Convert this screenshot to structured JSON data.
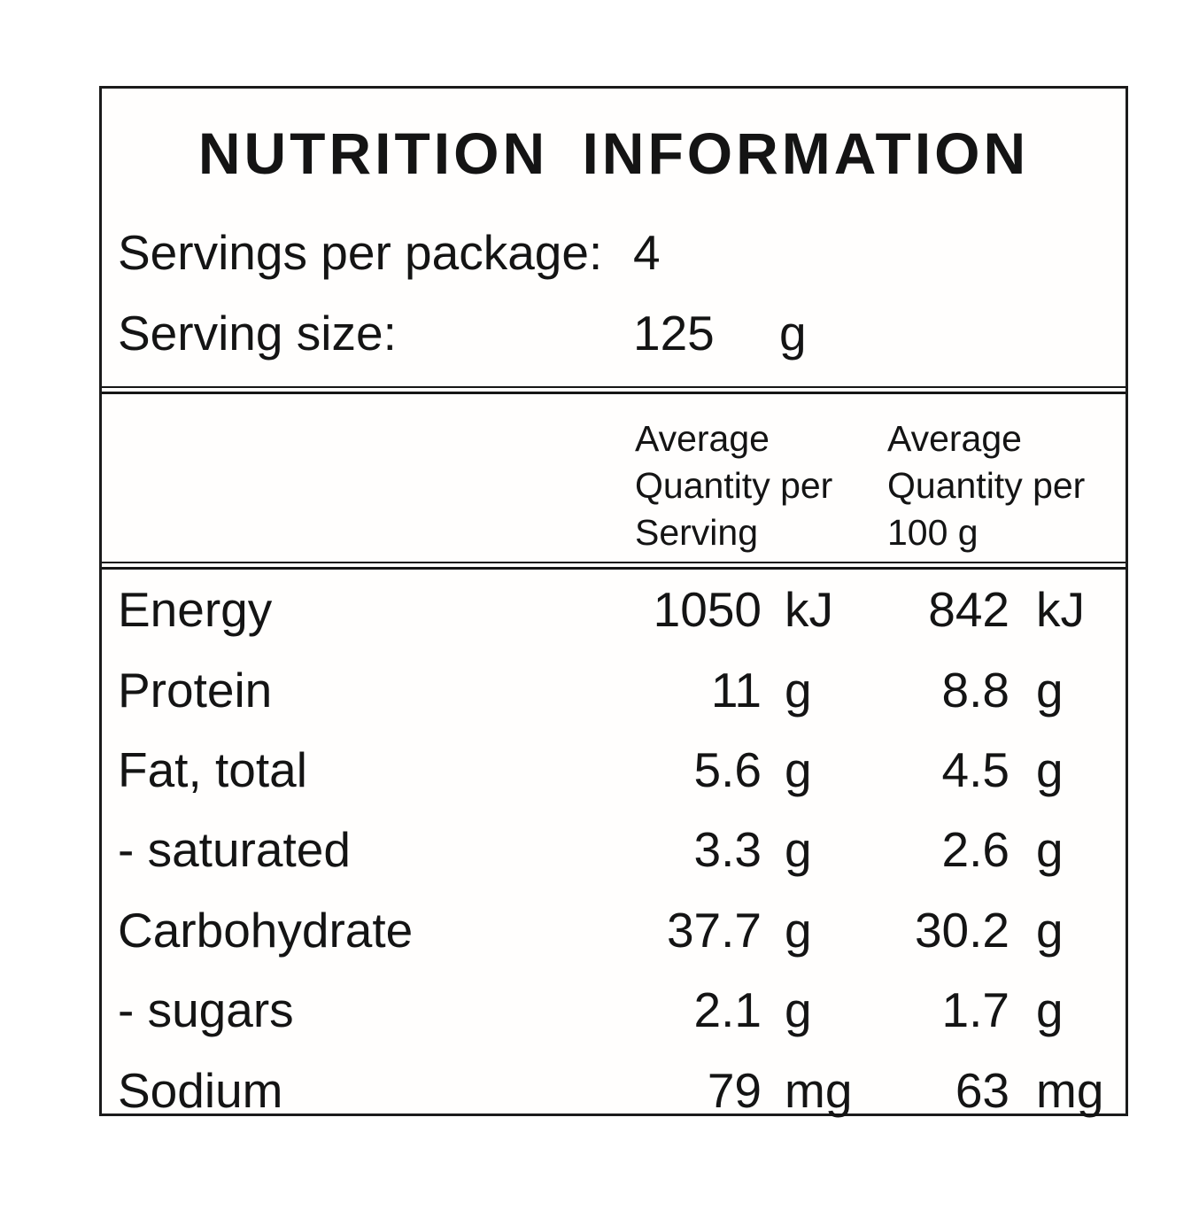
{
  "colors": {
    "text": "#141414",
    "border": "#1b1b1b",
    "background": "#ffffff"
  },
  "panel": {
    "title": "NUTRITION INFORMATION",
    "servings_per_package_label": "Servings per package:",
    "servings_per_package_value": "4",
    "serving_size_label": "Serving size:",
    "serving_size_value": "125",
    "serving_size_unit": "g",
    "column_headers": {
      "per_serving": {
        "line1": "Average",
        "line2": "Quantity per",
        "line3": "Serving"
      },
      "per_100g": {
        "line1": "Average",
        "line2": "Quantity per",
        "line3": "100 g"
      }
    },
    "rows": [
      {
        "name": "Energy",
        "qty_serving": "1050",
        "unit_serving": "kJ",
        "qty_100g": "842",
        "unit_100g": "kJ"
      },
      {
        "name": "Protein",
        "qty_serving": "11",
        "unit_serving": "g",
        "qty_100g": "8.8",
        "unit_100g": "g"
      },
      {
        "name": "Fat, total",
        "qty_serving": "5.6",
        "unit_serving": "g",
        "qty_100g": "4.5",
        "unit_100g": "g"
      },
      {
        "name": "- saturated",
        "qty_serving": "3.3",
        "unit_serving": "g",
        "qty_100g": "2.6",
        "unit_100g": "g"
      },
      {
        "name": "Carbohydrate",
        "qty_serving": "37.7",
        "unit_serving": "g",
        "qty_100g": "30.2",
        "unit_100g": "g"
      },
      {
        "name": "- sugars",
        "qty_serving": "2.1",
        "unit_serving": "g",
        "qty_100g": "1.7",
        "unit_100g": "g"
      },
      {
        "name": "Sodium",
        "qty_serving": "79",
        "unit_serving": "mg",
        "qty_100g": "63",
        "unit_100g": "mg"
      }
    ]
  }
}
